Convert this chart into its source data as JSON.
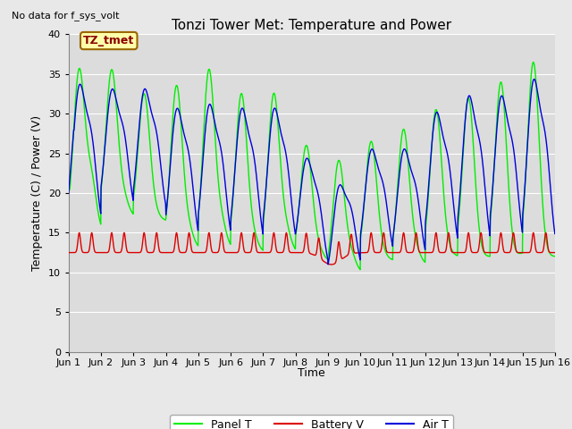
{
  "title": "Tonzi Tower Met: Temperature and Power",
  "ylabel": "Temperature (C) / Power (V)",
  "xlabel": "Time",
  "top_label": "No data for f_sys_volt",
  "annotation_label": "TZ_tmet",
  "ylim": [
    0,
    40
  ],
  "yticks": [
    0,
    5,
    10,
    15,
    20,
    25,
    30,
    35,
    40
  ],
  "xlim": [
    0,
    15
  ],
  "xtick_labels": [
    "Jun 1",
    "Jun 2",
    "Jun 3",
    "Jun 4",
    "Jun 5",
    "Jun 6",
    "Jun 7",
    "Jun 8",
    "Jun 9",
    "Jun 10",
    "Jun 11",
    "Jun 12",
    "Jun 13",
    "Jun 14",
    "Jun 15",
    "Jun 16"
  ],
  "bg_color": "#dcdcdc",
  "panel_t_color": "#00ee00",
  "battery_v_color": "#dd0000",
  "air_t_color": "#0000dd",
  "grid_color": "#ffffff",
  "title_fontsize": 11,
  "label_fontsize": 9,
  "tick_fontsize": 8,
  "fig_bg": "#e8e8e8",
  "panel_peak1": [
    35.5,
    35.5,
    32.5,
    33.5,
    35.5,
    32.5,
    32.5,
    26.0,
    24.5,
    26.5,
    28.0,
    30.5,
    32.0,
    34.0,
    36.5
  ],
  "panel_peak2": [
    21.0,
    19.0,
    17.0,
    15.0,
    16.0,
    14.0,
    15.0,
    13.0,
    12.0,
    12.0,
    12.5,
    12.5,
    12.0,
    12.0,
    12.0
  ],
  "air_peak1": [
    33.0,
    32.5,
    32.5,
    30.0,
    30.5,
    30.0,
    30.0,
    24.0,
    22.0,
    25.0,
    25.0,
    29.5,
    31.5,
    31.5,
    33.5
  ],
  "air_min": [
    15.0,
    17.0,
    16.5,
    13.0,
    13.0,
    12.5,
    12.5,
    12.0,
    10.0,
    11.5,
    11.0,
    12.0,
    12.0,
    12.5,
    12.0
  ],
  "battery_base": 12.5,
  "battery_spike": 15.0
}
